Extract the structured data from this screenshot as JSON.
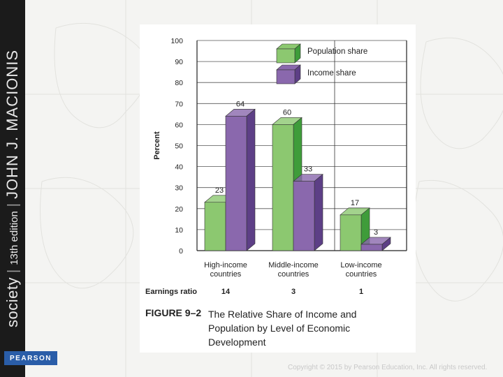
{
  "spine": {
    "brand": "society",
    "edition": "13th edition",
    "author": "JOHN J. MACIONIS"
  },
  "publisher_logo": "PEARSON",
  "copyright": "Copyright © 2015 by Pearson Education, Inc. All rights reserved.",
  "figure": {
    "number": "FIGURE 9–2",
    "caption": "The Relative Share of Income and Population by Level of Economic Development"
  },
  "colors": {
    "population": "#8cc870",
    "population_side": "#3f9c3a",
    "income": "#8a68ad",
    "income_side": "#5d3f86"
  },
  "chart_data": {
    "type": "bar",
    "ylabel": "Percent",
    "ylim": [
      0,
      100
    ],
    "yticks": [
      0,
      10,
      20,
      30,
      40,
      50,
      60,
      70,
      80,
      90,
      100
    ],
    "categories": [
      "High-income countries",
      "Middle-income countries",
      "Low-income countries"
    ],
    "category_lines": [
      [
        "High-income",
        "countries"
      ],
      [
        "Middle-income",
        "countries"
      ],
      [
        "Low-income",
        "countries"
      ]
    ],
    "series": [
      {
        "name": "Population share",
        "values": [
          23,
          60,
          17
        ]
      },
      {
        "name": "Income share",
        "values": [
          64,
          33,
          3
        ]
      }
    ],
    "earnings_ratio": {
      "label": "Earnings ratio",
      "values": [
        "14",
        "3",
        "1"
      ]
    },
    "legend_position": "top-right",
    "grid": true
  }
}
